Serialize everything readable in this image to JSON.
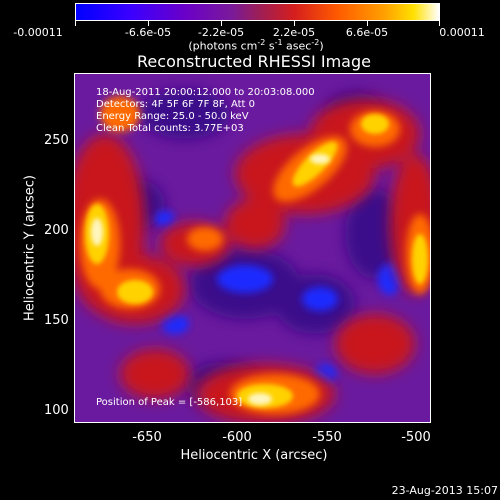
{
  "colorbar": {
    "labels": [
      "-0.00011",
      "-6.6e-05",
      "-2.2e-05",
      "2.2e-05",
      "6.6e-05",
      "0.00011"
    ],
    "units": {
      "prefix": "(photons cm",
      "cm_exp": "-2",
      "s_part": " s",
      "s_exp": "-1",
      "asec_part": " asec",
      "asec_exp": "-2",
      "suffix": ")"
    }
  },
  "plot": {
    "title": "Reconstructed RHESSI Image",
    "info_lines": [
      "18-Aug-2011 20:00:12.000 to 20:03:08.000",
      "Detectors: 4F 5F 6F 7F 8F, Att 0",
      "Energy Range: 25.0 - 50.0 keV",
      "Clean      Total counts: 3.77E+03"
    ],
    "peak_text": "Position of Peak = [-586,103]",
    "y_ticks": [
      "250",
      "200",
      "150",
      "100"
    ],
    "x_ticks": [
      "-650",
      "-600",
      "-550",
      "-500"
    ],
    "y_axis_label": "Heliocentric Y (arcsec)",
    "x_axis_label": "Heliocentric X (arcsec)"
  },
  "timestamp": "23-Aug-2013 15:07"
}
